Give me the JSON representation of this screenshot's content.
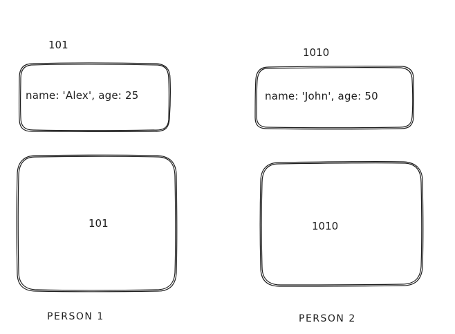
{
  "diagram": {
    "person1": {
      "heap_address": "101",
      "object_text": "name: 'Alex', age: 25",
      "reference_value": "101",
      "caption": "PERSON 1"
    },
    "person2": {
      "heap_address": "1010",
      "object_text": "name: 'John', age: 50",
      "reference_value": "1010",
      "caption": "PERSON 2"
    },
    "stroke_color": "#1e1e1e",
    "background_color": "#ffffff"
  }
}
